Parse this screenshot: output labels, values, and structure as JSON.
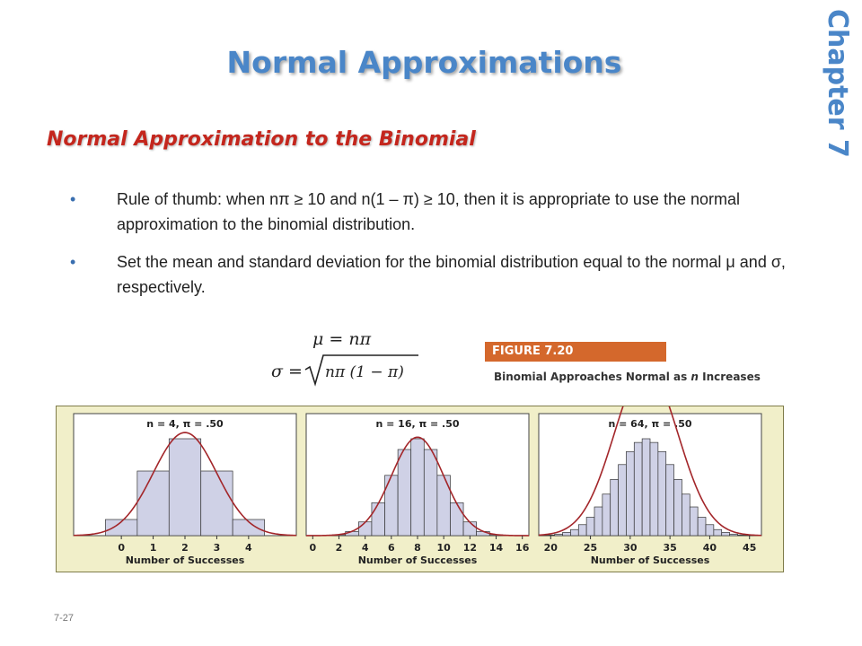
{
  "slide": {
    "title": "Normal Approximations",
    "chapter": "Chapter  7",
    "section": "Normal Approximation to the Binomial",
    "page_number": "7-27"
  },
  "bullets": [
    {
      "marker": "•",
      "text": "Rule of thumb:  when nπ ≥ 10 and n(1 – π) ≥ 10, then it is appropriate to use the normal approximation to the binomial distribution."
    },
    {
      "marker": "•",
      "text": "Set the mean and standard deviation for the binomial distribution equal to the normal μ and σ, respectively."
    }
  ],
  "formulas": {
    "mean": "μ = nπ",
    "sd_lhs": "σ =",
    "sd_rhs": "nπ (1 − π)"
  },
  "figure": {
    "label": "FIGURE 7.20",
    "caption_pre": "Binomial Approaches Normal as ",
    "caption_italic": "n",
    "caption_post": " Increases",
    "colors": {
      "bar_fill": "#cfd1e6",
      "bar_stroke": "#333333",
      "curve": "#a3262a",
      "panel_bg": "#f1efc9"
    }
  },
  "chart_data": [
    {
      "type": "bar",
      "overlay": "normal-curve",
      "title": "n = 4, π = .50",
      "xlabel": "Number of Successes",
      "n": 4,
      "p": 0.5,
      "x_ticks": [
        "0",
        "1",
        "2",
        "3",
        "4"
      ],
      "categories": [
        0,
        1,
        2,
        3,
        4
      ],
      "values": [
        0.0625,
        0.25,
        0.375,
        0.25,
        0.0625
      ],
      "xlim": [
        -1.5,
        5.5
      ]
    },
    {
      "type": "bar",
      "overlay": "normal-curve",
      "title": "n = 16, π = .50",
      "xlabel": "Number of Successes",
      "n": 16,
      "p": 0.5,
      "x_ticks": [
        "0",
        "2",
        "4",
        "6",
        "8",
        "10",
        "12",
        "14",
        "16"
      ],
      "categories": [
        0,
        1,
        2,
        3,
        4,
        5,
        6,
        7,
        8,
        9,
        10,
        11,
        12,
        13,
        14,
        15,
        16
      ],
      "values": [
        0.0,
        0.0002,
        0.0018,
        0.0085,
        0.0278,
        0.0667,
        0.1222,
        0.1746,
        0.1964,
        0.1746,
        0.1222,
        0.0667,
        0.0278,
        0.0085,
        0.0018,
        0.0002,
        0.0
      ],
      "xlim": [
        -0.5,
        16.5
      ]
    },
    {
      "type": "bar",
      "overlay": "normal-curve",
      "title": "n = 64, π = .50",
      "xlabel": "Number of Successes",
      "n": 64,
      "p": 0.5,
      "x_ticks": [
        "20",
        "25",
        "30",
        "35",
        "40",
        "45"
      ],
      "categories": [
        19,
        20,
        21,
        22,
        23,
        24,
        25,
        26,
        27,
        28,
        29,
        30,
        31,
        32,
        33,
        34,
        35,
        36,
        37,
        38,
        39,
        40,
        41,
        42,
        43,
        44,
        45
      ],
      "values": [
        0.0002,
        0.0004,
        0.0009,
        0.0019,
        0.0036,
        0.0065,
        0.0109,
        0.017,
        0.0246,
        0.0333,
        0.0421,
        0.0498,
        0.0552,
        0.0574,
        0.0552,
        0.0498,
        0.0421,
        0.0333,
        0.0246,
        0.017,
        0.0109,
        0.0065,
        0.0036,
        0.0019,
        0.0009,
        0.0004,
        0.0002
      ],
      "xlim": [
        18.5,
        46.5
      ]
    }
  ]
}
